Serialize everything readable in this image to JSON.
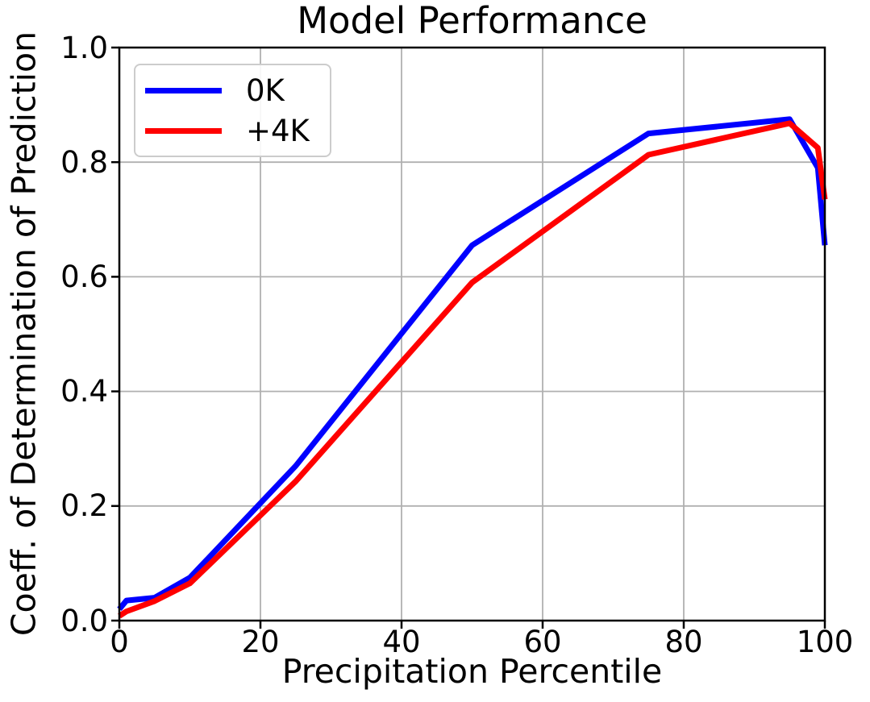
{
  "chart_data": {
    "type": "line",
    "title": "Model Performance",
    "xlabel": "Precipitation Percentile",
    "ylabel": "Coeff. of Determination of Prediction",
    "xlim": [
      0,
      100
    ],
    "ylim": [
      0.0,
      1.0
    ],
    "grid": true,
    "grid_color": "#b0b0b0",
    "legend_position": "upper left",
    "x_ticks": [
      0,
      20,
      40,
      60,
      80,
      100
    ],
    "x_tick_labels": [
      "0",
      "20",
      "40",
      "60",
      "80",
      "100"
    ],
    "y_ticks": [
      0.0,
      0.2,
      0.4,
      0.6,
      0.8,
      1.0
    ],
    "y_tick_labels": [
      "0.0",
      "0.2",
      "0.4",
      "0.6",
      "0.8",
      "1.0"
    ],
    "x": [
      0,
      1,
      5,
      10,
      25,
      50,
      75,
      95,
      99,
      100
    ],
    "series": [
      {
        "name": "0K",
        "color": "#0000ff",
        "values": [
          0.02,
          0.035,
          0.04,
          0.075,
          0.27,
          0.655,
          0.85,
          0.875,
          0.79,
          0.655
        ]
      },
      {
        "name": "+4K",
        "color": "#ff0000",
        "values": [
          0.008,
          0.016,
          0.034,
          0.065,
          0.243,
          0.59,
          0.813,
          0.868,
          0.825,
          0.735
        ]
      }
    ]
  }
}
